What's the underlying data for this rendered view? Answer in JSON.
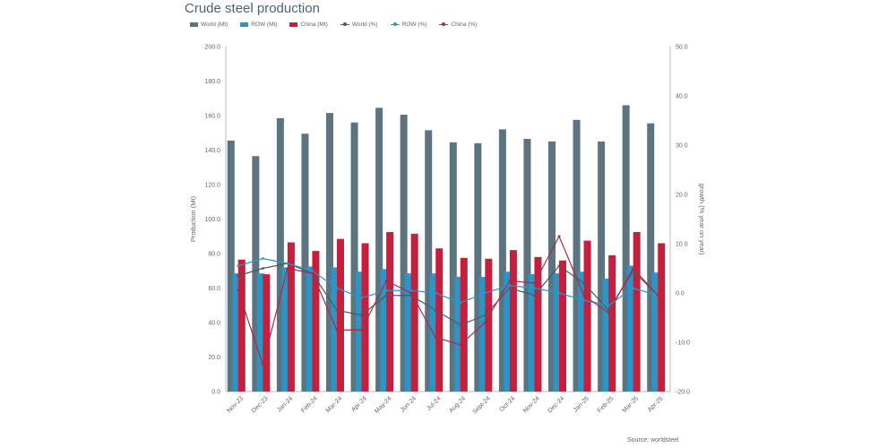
{
  "chart_data": {
    "type": "bar",
    "title": "Crude steel production",
    "source": "Source: worldsteel",
    "categories": [
      "Nov-23",
      "Dec-23",
      "Jan-24",
      "Feb-24",
      "Mar-24",
      "Apr-24",
      "May-24",
      "Jun-24",
      "Jul-24",
      "Aug-24",
      "Sept-24",
      "Oct-24",
      "Nov-24",
      "Dec-24",
      "Jan-25",
      "Feb-25",
      "Mar-25",
      "Apr-25"
    ],
    "ylabel": "Production (Mt)",
    "ylabel_right": "growth (% year on year)",
    "ylim": [
      0,
      200
    ],
    "ylim_right": [
      -20,
      50
    ],
    "yticks": [
      "0.0",
      "20.0",
      "40.0",
      "60.0",
      "80.0",
      "100.0",
      "120.0",
      "140.0",
      "160.0",
      "180.0",
      "200.0"
    ],
    "yticks_right": [
      "-20.0",
      "-10.0",
      "0.0",
      "10.0",
      "20.0",
      "30.0",
      "40.0",
      "50.0"
    ],
    "series": [
      {
        "name": "World (Mt)",
        "kind": "bar",
        "color": "#5b7480",
        "values": [
          145.5,
          136.5,
          158.5,
          149.5,
          161.5,
          156.0,
          164.5,
          160.5,
          151.5,
          144.5,
          144.0,
          152.0,
          146.5,
          145.0,
          157.5,
          145.0,
          166.0,
          155.5
        ]
      },
      {
        "name": "ROW (Mt)",
        "kind": "bar",
        "color": "#2a96c8",
        "values": [
          68.5,
          68.5,
          72.0,
          72.5,
          72.0,
          69.5,
          71.0,
          68.5,
          68.5,
          66.5,
          66.5,
          69.5,
          68.0,
          68.5,
          69.5,
          65.5,
          73.0,
          69.0
        ]
      },
      {
        "name": "China (Mt)",
        "kind": "bar",
        "color": "#c41f3c",
        "values": [
          76.5,
          68.0,
          86.5,
          81.5,
          88.5,
          86.0,
          92.5,
          91.5,
          83.0,
          77.5,
          77.0,
          82.0,
          78.0,
          76.0,
          87.5,
          79.0,
          92.5,
          86.0
        ]
      },
      {
        "name": "World (%)",
        "kind": "line",
        "axis": "right",
        "color": "#4a5a64",
        "values": [
          3.5,
          5.0,
          6.0,
          4.0,
          -3.5,
          -4.5,
          -0.5,
          -0.5,
          -3.5,
          -6.5,
          -4.5,
          1.0,
          -0.5,
          5.5,
          2.0,
          -3.5,
          4.5,
          -0.5
        ]
      },
      {
        "name": "ROW (%)",
        "kind": "line",
        "axis": "right",
        "color": "#2a96c8",
        "values": [
          5.5,
          7.0,
          6.0,
          4.5,
          1.0,
          -1.0,
          0.5,
          0.5,
          0.0,
          -2.0,
          0.0,
          1.5,
          1.0,
          0.0,
          -1.5,
          -2.5,
          1.0,
          -0.5
        ]
      },
      {
        "name": "China (%)",
        "kind": "line",
        "axis": "right",
        "color": "#b0274a",
        "values": [
          0.5,
          -14.5,
          5.0,
          4.0,
          -7.5,
          -7.5,
          2.5,
          0.0,
          -9.0,
          -10.5,
          -6.0,
          2.5,
          2.0,
          11.5,
          -0.5,
          -4.0,
          5.0,
          -0.5
        ]
      }
    ]
  }
}
